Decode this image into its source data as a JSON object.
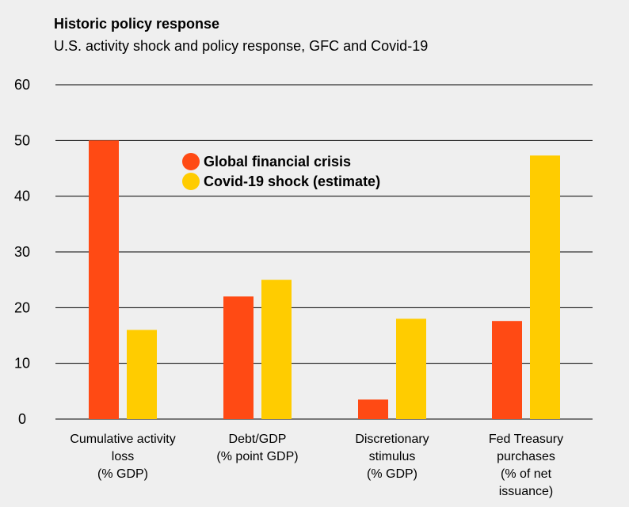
{
  "title": "Historic policy response",
  "subtitle": "U.S. activity shock and policy response, GFC and Covid-19",
  "colors": {
    "gfc": "#ff4a14",
    "covid": "#ffcc00",
    "grid": "#000000",
    "background": "#efefef"
  },
  "chart_data": {
    "type": "bar",
    "title": "Historic policy response",
    "subtitle": "U.S. activity shock and policy response, GFC and Covid-19",
    "categories": [
      [
        "Cumulative activity",
        "loss",
        "(% GDP)"
      ],
      [
        "Debt/GDP",
        "(% point GDP)"
      ],
      [
        "Discretionary",
        "stimulus",
        "(% GDP)"
      ],
      [
        "Fed Treasury",
        "purchases",
        "(% of net",
        "issuance)"
      ]
    ],
    "series": [
      {
        "name": "Global financial crisis",
        "values": [
          50,
          22,
          3.5,
          17.6
        ]
      },
      {
        "name": "Covid-19 shock (estimate)",
        "values": [
          16,
          25,
          18,
          47.3
        ]
      }
    ],
    "ylim": [
      0,
      60
    ],
    "yticks": [
      0,
      10,
      20,
      30,
      40,
      50,
      60
    ],
    "grid": true,
    "legend": "upper-center"
  }
}
